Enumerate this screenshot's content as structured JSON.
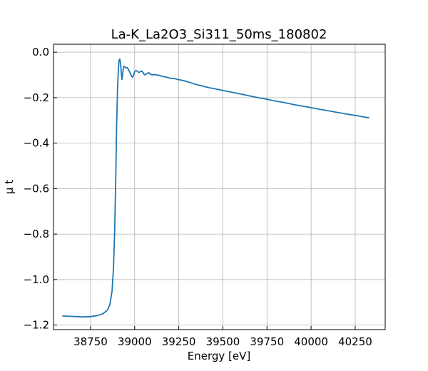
{
  "chart_data": {
    "type": "line",
    "title": "La-K_La2O3_Si311_50ms_180802",
    "xlabel": "Energy [eV]",
    "ylabel": "μ t",
    "xlim": [
      38540,
      40420
    ],
    "ylim": [
      -1.22,
      0.035
    ],
    "xticks": [
      38750,
      39000,
      39250,
      39500,
      39750,
      40000,
      40250
    ],
    "xtick_labels": [
      "38750",
      "39000",
      "39250",
      "39500",
      "39750",
      "40000",
      "40250"
    ],
    "yticks": [
      0.0,
      -0.2,
      -0.4,
      -0.6,
      -0.8,
      -1.0,
      -1.2
    ],
    "ytick_labels": [
      "0.0",
      "−0.2",
      "−0.4",
      "−0.6",
      "−0.8",
      "−1.0",
      "−1.2"
    ],
    "grid": true,
    "color": "#1f77b4",
    "series": [
      {
        "x": [
          38590,
          38650,
          38700,
          38750,
          38790,
          38820,
          38845,
          38860,
          38872,
          38880,
          38887,
          38893,
          38898,
          38903,
          38908,
          38912,
          38916,
          38920,
          38924,
          38928,
          38932,
          38936,
          38940,
          38946,
          38952,
          38958,
          38964,
          38970,
          38976,
          38982,
          38988,
          38994,
          39000,
          39008,
          39016,
          39024,
          39032,
          39040,
          39048,
          39056,
          39064,
          39072,
          39080,
          39090,
          39100,
          39110,
          39120,
          39130,
          39140,
          39150,
          39160,
          39170,
          39180,
          39190,
          39200,
          39210,
          39220,
          39230,
          39240,
          39250,
          39260,
          39270,
          39280,
          39300,
          39320,
          39340,
          39360,
          39380,
          39400,
          39420,
          39440,
          39460,
          39480,
          39500,
          39550,
          39600,
          39650,
          39700,
          39750,
          39800,
          39850,
          39900,
          39950,
          40000,
          40050,
          40100,
          40150,
          40200,
          40250,
          40300,
          40330
        ],
        "y": [
          -1.16,
          -1.162,
          -1.164,
          -1.163,
          -1.158,
          -1.15,
          -1.135,
          -1.11,
          -1.05,
          -0.95,
          -0.78,
          -0.55,
          -0.32,
          -0.16,
          -0.07,
          -0.035,
          -0.03,
          -0.05,
          -0.09,
          -0.12,
          -0.095,
          -0.07,
          -0.062,
          -0.065,
          -0.07,
          -0.068,
          -0.075,
          -0.085,
          -0.095,
          -0.105,
          -0.11,
          -0.1,
          -0.085,
          -0.08,
          -0.085,
          -0.09,
          -0.085,
          -0.083,
          -0.09,
          -0.1,
          -0.097,
          -0.093,
          -0.09,
          -0.097,
          -0.1,
          -0.098,
          -0.1,
          -0.101,
          -0.102,
          -0.105,
          -0.107,
          -0.108,
          -0.11,
          -0.112,
          -0.114,
          -0.115,
          -0.116,
          -0.117,
          -0.119,
          -0.121,
          -0.122,
          -0.124,
          -0.126,
          -0.13,
          -0.135,
          -0.14,
          -0.144,
          -0.148,
          -0.152,
          -0.156,
          -0.159,
          -0.162,
          -0.165,
          -0.168,
          -0.176,
          -0.184,
          -0.192,
          -0.2,
          -0.207,
          -0.215,
          -0.222,
          -0.23,
          -0.237,
          -0.244,
          -0.251,
          -0.258,
          -0.265,
          -0.272,
          -0.278,
          -0.285,
          -0.289
        ]
      }
    ]
  }
}
